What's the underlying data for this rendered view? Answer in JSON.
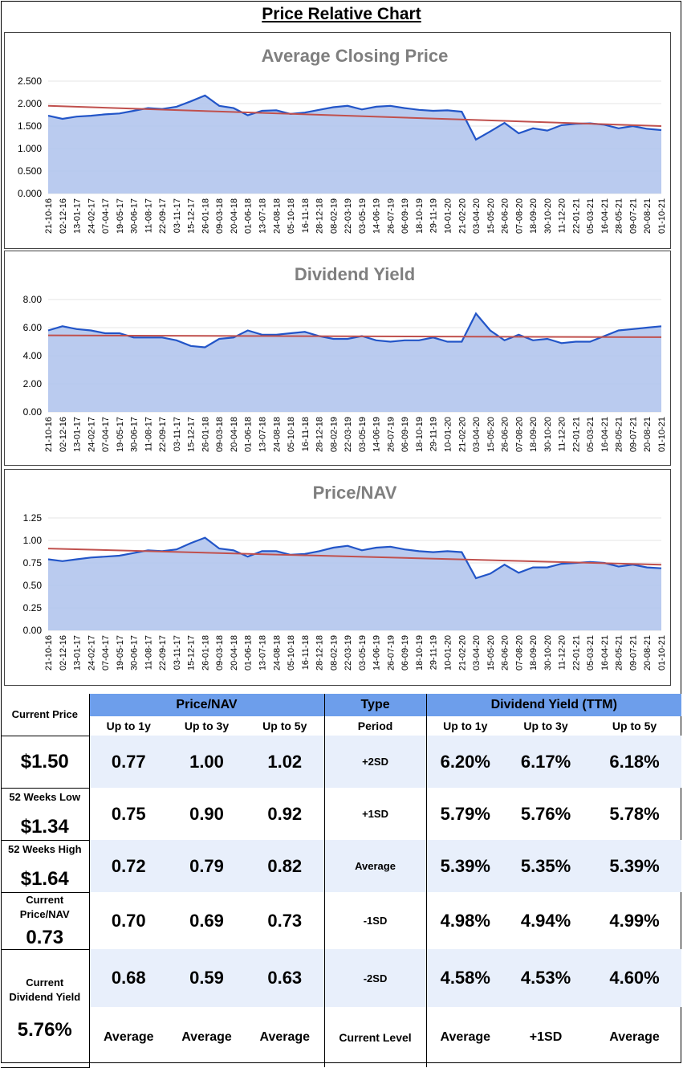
{
  "page_title": "Price Relative Chart",
  "x_dates": [
    "21-10-16",
    "02-12-16",
    "13-01-17",
    "24-02-17",
    "07-04-17",
    "19-05-17",
    "30-06-17",
    "11-08-17",
    "22-09-17",
    "03-11-17",
    "15-12-17",
    "26-01-18",
    "09-03-18",
    "20-04-18",
    "01-06-18",
    "13-07-18",
    "24-08-18",
    "05-10-18",
    "16-11-18",
    "28-12-18",
    "08-02-19",
    "22-03-19",
    "03-05-19",
    "14-06-19",
    "26-07-19",
    "06-09-19",
    "18-10-19",
    "29-11-19",
    "10-01-20",
    "21-02-20",
    "03-04-20",
    "15-05-20",
    "26-06-20",
    "07-08-20",
    "18-09-20",
    "30-10-20",
    "11-12-20",
    "22-01-21",
    "05-03-21",
    "16-04-21",
    "28-05-21",
    "09-07-21",
    "20-08-21",
    "01-10-21"
  ],
  "chart_data": [
    {
      "type": "area",
      "title": "Average Closing Price",
      "ylim": [
        0,
        2.5
      ],
      "yticks": [
        "0.000",
        "0.500",
        "1.000",
        "1.500",
        "2.000",
        "2.500"
      ],
      "trend": [
        1.95,
        1.5
      ],
      "series": [
        {
          "name": "Average Closing Price",
          "values": [
            1.73,
            1.66,
            1.71,
            1.73,
            1.76,
            1.78,
            1.84,
            1.9,
            1.88,
            1.93,
            2.05,
            2.18,
            1.95,
            1.9,
            1.74,
            1.84,
            1.85,
            1.77,
            1.8,
            1.86,
            1.92,
            1.95,
            1.87,
            1.93,
            1.95,
            1.9,
            1.86,
            1.84,
            1.85,
            1.82,
            1.2,
            1.38,
            1.57,
            1.34,
            1.45,
            1.4,
            1.52,
            1.55,
            1.56,
            1.53,
            1.45,
            1.5,
            1.44,
            1.41
          ]
        }
      ]
    },
    {
      "type": "area",
      "title": "Dividend Yield",
      "ylim": [
        0,
        8
      ],
      "yticks": [
        "0.00",
        "2.00",
        "4.00",
        "6.00",
        "8.00"
      ],
      "trend": [
        5.45,
        5.32
      ],
      "series": [
        {
          "name": "Dividend Yield",
          "values": [
            5.8,
            6.1,
            5.9,
            5.8,
            5.6,
            5.6,
            5.3,
            5.3,
            5.3,
            5.1,
            4.7,
            4.6,
            5.2,
            5.3,
            5.8,
            5.5,
            5.5,
            5.6,
            5.7,
            5.4,
            5.2,
            5.2,
            5.4,
            5.1,
            5.0,
            5.1,
            5.1,
            5.3,
            5.0,
            5.0,
            7.0,
            5.8,
            5.1,
            5.5,
            5.1,
            5.2,
            4.9,
            5.0,
            5.0,
            5.4,
            5.8,
            5.9,
            6.0,
            6.1
          ]
        }
      ]
    },
    {
      "type": "area",
      "title": "Price/NAV",
      "ylim": [
        0,
        1.25
      ],
      "yticks": [
        "0.00",
        "0.25",
        "0.50",
        "0.75",
        "1.00",
        "1.25"
      ],
      "trend": [
        0.91,
        0.73
      ],
      "series": [
        {
          "name": "Price/NAV",
          "values": [
            0.79,
            0.77,
            0.79,
            0.81,
            0.82,
            0.83,
            0.86,
            0.89,
            0.88,
            0.9,
            0.97,
            1.03,
            0.91,
            0.89,
            0.82,
            0.88,
            0.88,
            0.84,
            0.85,
            0.88,
            0.92,
            0.94,
            0.89,
            0.92,
            0.93,
            0.9,
            0.88,
            0.87,
            0.88,
            0.87,
            0.58,
            0.63,
            0.73,
            0.64,
            0.7,
            0.7,
            0.74,
            0.75,
            0.76,
            0.75,
            0.71,
            0.73,
            0.7,
            0.69
          ]
        }
      ]
    }
  ],
  "colors": {
    "line": "#2255c8",
    "fill": "#aec2ec",
    "trend": "#c0504d",
    "header": "#6d9eeb",
    "band": "#e8effb"
  },
  "summary": {
    "current_price_label": "Current Price",
    "current_price": "$1.50",
    "low_label": "52 Weeks Low",
    "low": "$1.34",
    "high_label": "52 Weeks High",
    "high": "$1.64",
    "pnav_label": "Current Price/NAV",
    "pnav": "0.73",
    "dy_label": "Current Dividend Yield",
    "dy": "5.76%",
    "pnav_header": "Price/NAV",
    "type_header": "Type",
    "dy_header": "Dividend Yield (TTM)",
    "periods": [
      "Up to 1y",
      "Up to 3y",
      "Up to 5y"
    ],
    "period_label": "Period",
    "rows": [
      {
        "type": "+2SD",
        "pnav": [
          "0.77",
          "1.00",
          "1.02"
        ],
        "dy": [
          "6.20%",
          "6.17%",
          "6.18%"
        ]
      },
      {
        "type": "+1SD",
        "pnav": [
          "0.75",
          "0.90",
          "0.92"
        ],
        "dy": [
          "5.79%",
          "5.76%",
          "5.78%"
        ]
      },
      {
        "type": "Average",
        "pnav": [
          "0.72",
          "0.79",
          "0.82"
        ],
        "dy": [
          "5.39%",
          "5.35%",
          "5.39%"
        ]
      },
      {
        "type": "-1SD",
        "pnav": [
          "0.70",
          "0.69",
          "0.73"
        ],
        "dy": [
          "4.98%",
          "4.94%",
          "4.99%"
        ]
      },
      {
        "type": "-2SD",
        "pnav": [
          "0.68",
          "0.59",
          "0.63"
        ],
        "dy": [
          "4.58%",
          "4.53%",
          "4.60%"
        ]
      }
    ],
    "current_level_label": "Current Level",
    "current_level_pnav": [
      "Average",
      "Average",
      "Average"
    ],
    "current_level_dy": [
      "Average",
      "+1SD",
      "Average"
    ]
  }
}
